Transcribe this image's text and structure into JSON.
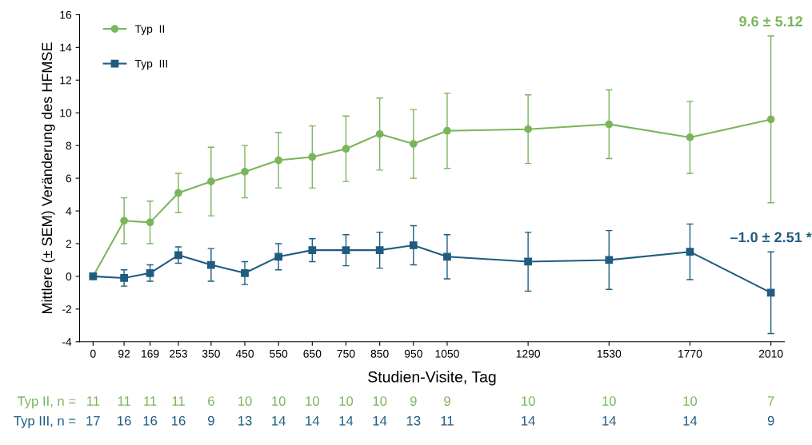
{
  "chart_data": {
    "type": "line",
    "ylabel": "Mittlere (± SEM) Veränderung des HFMSE",
    "xlabel": "Studien-Visite, Tag",
    "x": [
      0,
      92,
      169,
      253,
      350,
      450,
      550,
      650,
      750,
      850,
      950,
      1050,
      1290,
      1530,
      1770,
      2010
    ],
    "xlim": [
      -40,
      2050
    ],
    "xticks": [
      0,
      92,
      169,
      253,
      350,
      450,
      550,
      650,
      750,
      850,
      950,
      1050,
      1290,
      1530,
      1770,
      2010
    ],
    "ylim": [
      -4,
      16
    ],
    "yticks": [
      -4,
      -2,
      0,
      2,
      4,
      6,
      8,
      10,
      12,
      14,
      16
    ],
    "grid": false,
    "legend": "top left",
    "line_style": "solid",
    "series": [
      {
        "name": "Typ  II",
        "color": "#7ab55c",
        "marker": "circle",
        "values": [
          0,
          3.4,
          3.3,
          5.1,
          5.8,
          6.4,
          7.1,
          7.3,
          7.8,
          8.7,
          8.1,
          8.9,
          9.0,
          9.3,
          8.5,
          9.6
        ],
        "errors": [
          null,
          1.4,
          1.3,
          1.2,
          2.1,
          1.6,
          1.7,
          1.9,
          2.0,
          2.2,
          2.1,
          2.3,
          2.1,
          2.1,
          2.2,
          5.1
        ]
      },
      {
        "name": "Typ  III",
        "color": "#1f5c7f",
        "marker": "square",
        "values": [
          0,
          -0.1,
          0.2,
          1.3,
          0.7,
          0.2,
          1.2,
          1.6,
          1.6,
          1.6,
          1.9,
          1.2,
          0.9,
          1.0,
          1.5,
          -1.0
        ],
        "errors": [
          null,
          0.5,
          0.5,
          0.5,
          1.0,
          0.7,
          0.8,
          0.7,
          0.95,
          1.1,
          1.2,
          1.35,
          1.8,
          1.8,
          1.7,
          2.5
        ]
      }
    ],
    "annotations": [
      "9.6 ± 5.12",
      "–1.0 ± 2.51 *",
      "Typ II, n =",
      "11",
      "11",
      "11",
      "11",
      "6",
      "10",
      "10",
      "10",
      "10",
      "10",
      "9",
      "9",
      "10",
      "10",
      "10",
      "7",
      "Typ III, n =",
      "17",
      "16",
      "16",
      "16",
      "9",
      "13",
      "14",
      "14",
      "14",
      "14",
      "13",
      "11",
      "14",
      "14",
      "14",
      "9"
    ]
  }
}
